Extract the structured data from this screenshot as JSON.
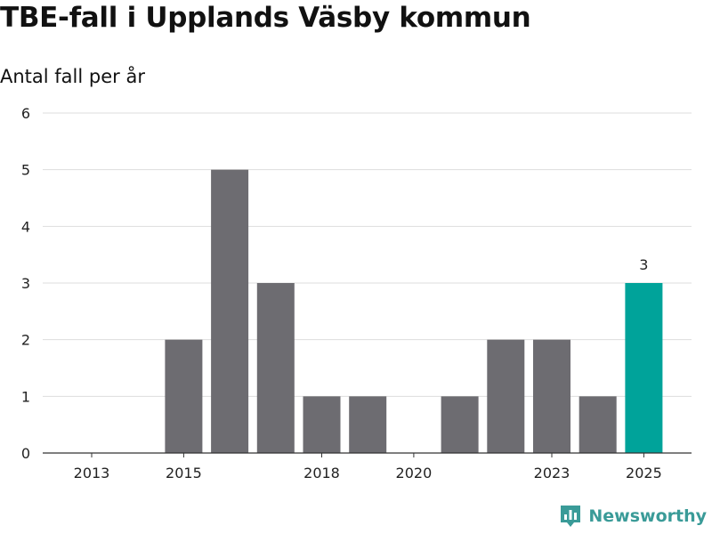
{
  "header": {
    "title": "TBE-fall i Upplands Väsby kommun",
    "subtitle": "Antal fall per år"
  },
  "brand": {
    "name": "Newsworthy",
    "color": "#3a9b98"
  },
  "colors": {
    "bar": "#6d6c71",
    "highlight": "#00a39a",
    "grid": "#dddddd",
    "axis": "#333333",
    "text": "#222222"
  },
  "chart_data": {
    "type": "bar",
    "title": "TBE-fall i Upplands Väsby kommun",
    "subtitle": "Antal fall per år",
    "xlabel": "",
    "ylabel": "",
    "categories": [
      "2013",
      "2014",
      "2015",
      "2016",
      "2017",
      "2018",
      "2019",
      "2020",
      "2021",
      "2022",
      "2023",
      "2024",
      "2025"
    ],
    "values": [
      0,
      0,
      2,
      5,
      3,
      1,
      1,
      0,
      1,
      2,
      2,
      1,
      3
    ],
    "x_tick_labels": [
      "2013",
      "2015",
      "2018",
      "2020",
      "2023",
      "2025"
    ],
    "y_ticks": [
      0,
      1,
      2,
      3,
      4,
      5,
      6
    ],
    "ylim": [
      0,
      6
    ],
    "highlight_category": "2025",
    "data_labels": [
      {
        "category": "2025",
        "text": "3"
      }
    ],
    "grid": true,
    "legend": "none"
  }
}
